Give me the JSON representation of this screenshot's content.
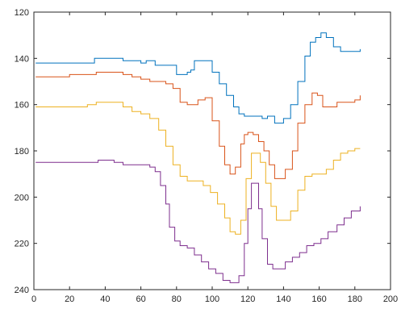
{
  "chart_data": {
    "type": "line",
    "title": "",
    "xlabel": "",
    "ylabel": "",
    "xlim": [
      0,
      200
    ],
    "ylim": [
      120,
      240
    ],
    "y_reversed": true,
    "grid": false,
    "legend": "none",
    "x_ticks": [
      "0",
      "20",
      "40",
      "60",
      "80",
      "100",
      "120",
      "140",
      "160",
      "180",
      "200"
    ],
    "y_ticks": [
      "120",
      "140",
      "160",
      "180",
      "200",
      "220",
      "240"
    ],
    "series": [
      {
        "color": "#0072BD",
        "x": [
          1,
          20,
          30,
          34,
          40,
          50,
          55,
          60,
          63,
          68,
          75,
          78,
          80,
          83,
          86,
          88,
          90,
          93,
          97,
          100,
          104,
          108,
          112,
          115,
          118,
          121,
          124,
          128,
          131,
          135,
          138,
          140,
          144,
          148,
          152,
          155,
          158,
          161,
          164,
          168,
          172,
          176,
          180,
          183
        ],
        "y": [
          142,
          142,
          142,
          140,
          140,
          141,
          141,
          142,
          141,
          143,
          143,
          143,
          147,
          147,
          146,
          145,
          141,
          141,
          141,
          146,
          151,
          156,
          161,
          164,
          165,
          165,
          165,
          166,
          165,
          168,
          168,
          166,
          160,
          150,
          139,
          133,
          131,
          129,
          131,
          135,
          137,
          137,
          137,
          136
        ]
      },
      {
        "color": "#D95319",
        "x": [
          1,
          10,
          20,
          30,
          35,
          40,
          50,
          55,
          60,
          65,
          70,
          74,
          78,
          82,
          86,
          88,
          92,
          96,
          100,
          104,
          107,
          110,
          113,
          116,
          118,
          120,
          123,
          126,
          129,
          132,
          135,
          138,
          141,
          145,
          148,
          152,
          156,
          159,
          162,
          166,
          170,
          175,
          180,
          183
        ],
        "y": [
          148,
          148,
          147,
          147,
          146,
          146,
          147,
          148,
          149,
          150,
          150,
          151,
          153,
          159,
          160,
          160,
          158,
          157,
          167,
          178,
          186,
          190,
          187,
          177,
          173,
          172,
          173,
          176,
          180,
          186,
          192,
          192,
          188,
          180,
          168,
          160,
          155,
          156,
          161,
          161,
          159,
          159,
          158,
          156
        ]
      },
      {
        "color": "#EDB120",
        "x": [
          1,
          15,
          25,
          30,
          35,
          40,
          50,
          55,
          60,
          65,
          70,
          74,
          78,
          82,
          86,
          90,
          95,
          99,
          103,
          107,
          110,
          113,
          116,
          119,
          122,
          124,
          127,
          130,
          133,
          136,
          140,
          144,
          148,
          152,
          156,
          160,
          164,
          168,
          172,
          176,
          180,
          183
        ],
        "y": [
          161,
          161,
          161,
          160,
          159,
          159,
          161,
          163,
          164,
          166,
          171,
          178,
          186,
          191,
          193,
          193,
          195,
          198,
          203,
          209,
          215,
          216,
          210,
          192,
          181,
          181,
          185,
          194,
          204,
          210,
          210,
          206,
          197,
          191,
          190,
          190,
          188,
          184,
          181,
          180,
          179,
          179
        ]
      },
      {
        "color": "#7E2F8E",
        "x": [
          1,
          15,
          25,
          33,
          36,
          40,
          45,
          50,
          55,
          60,
          65,
          68,
          71,
          74,
          76,
          79,
          82,
          86,
          90,
          94,
          98,
          102,
          106,
          110,
          113,
          115,
          118,
          120,
          122,
          124,
          126,
          128,
          131,
          134,
          137,
          141,
          145,
          149,
          153,
          157,
          161,
          165,
          170,
          174,
          178,
          183
        ],
        "y": [
          185,
          185,
          185,
          185,
          184,
          184,
          185,
          186,
          186,
          186,
          187,
          189,
          195,
          203,
          213,
          219,
          221,
          222,
          225,
          228,
          231,
          233,
          236,
          237,
          237,
          234,
          220,
          205,
          194,
          194,
          205,
          218,
          229,
          231,
          231,
          228,
          226,
          224,
          221,
          220,
          218,
          215,
          212,
          209,
          206,
          204
        ]
      }
    ]
  }
}
